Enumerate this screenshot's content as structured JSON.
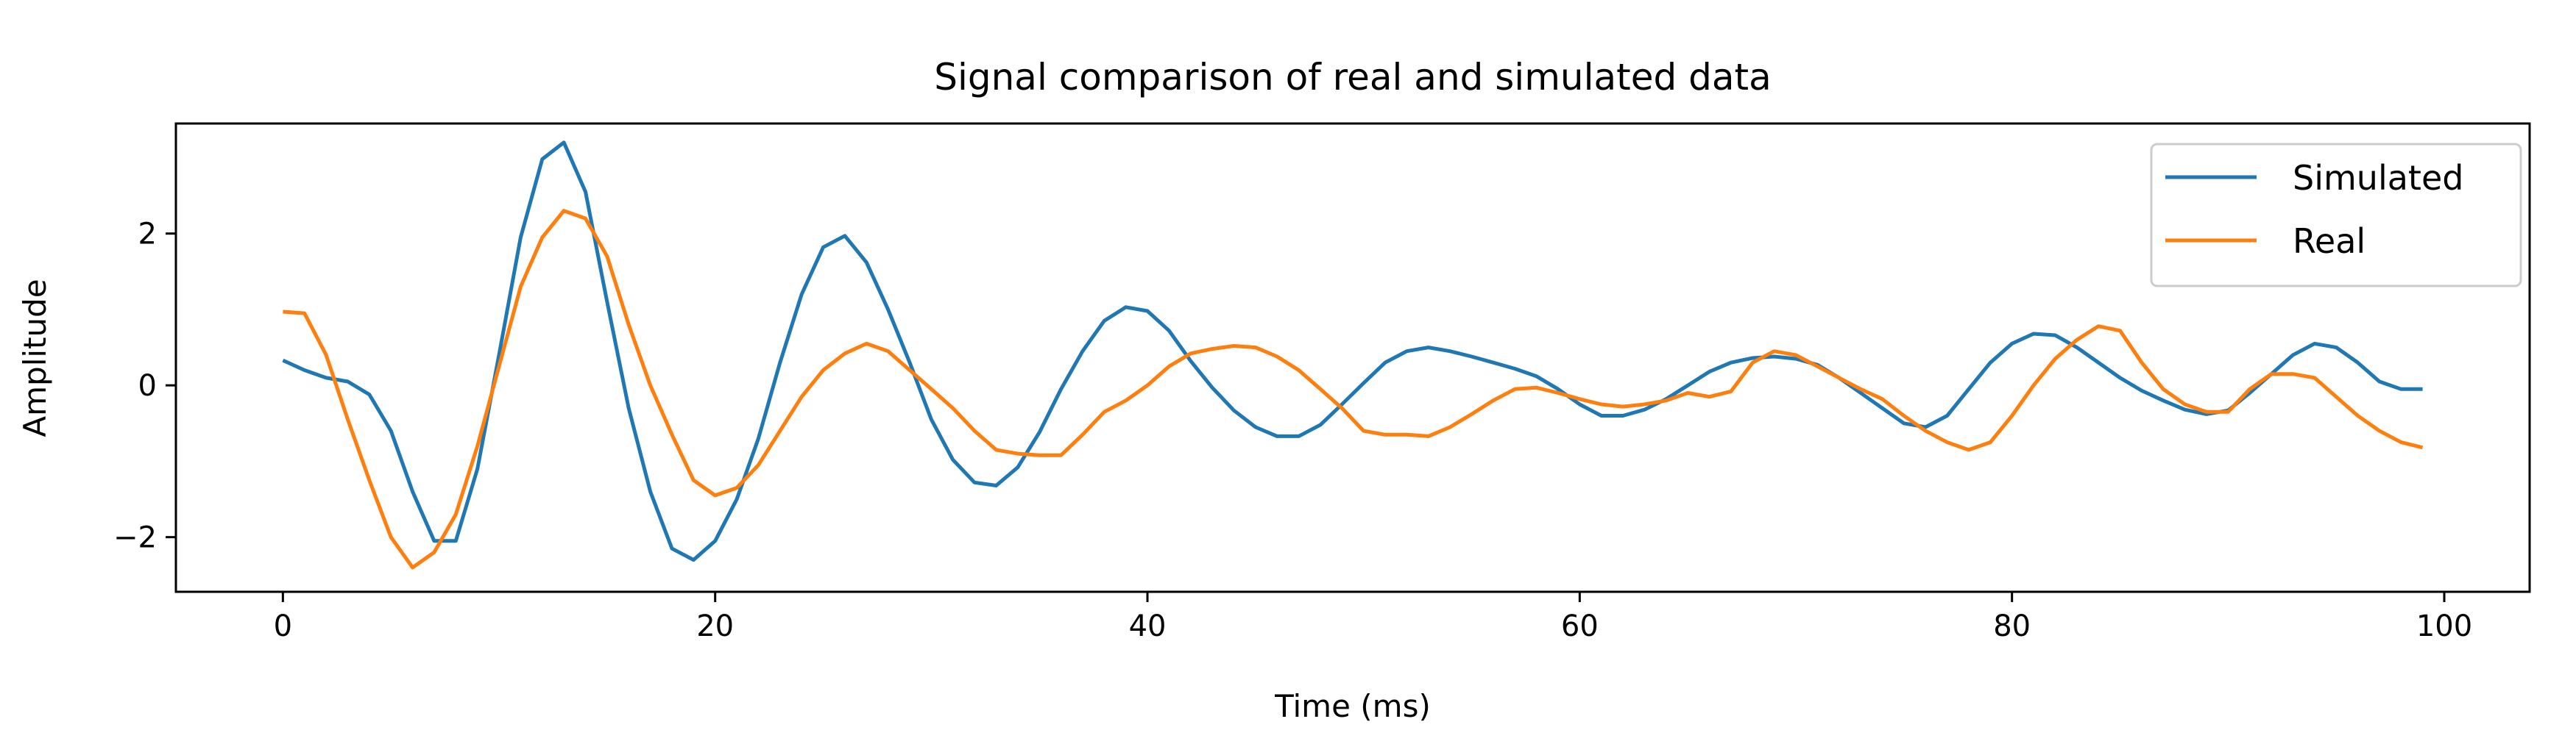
{
  "chart_data": {
    "type": "line",
    "title": "Signal comparison of real and simulated data",
    "xlabel": "Time (ms)",
    "ylabel": "Amplitude",
    "xlim": [
      -4.95,
      103.95
    ],
    "ylim": [
      -2.72,
      3.45
    ],
    "xticks": [
      0,
      20,
      40,
      60,
      80,
      100
    ],
    "xtick_labels": [
      "0",
      "20",
      "40",
      "60",
      "80",
      "100"
    ],
    "yticks": [
      -2,
      0,
      2
    ],
    "ytick_labels": [
      "−2",
      "0",
      "2"
    ],
    "grid": false,
    "legend_position": "top-right",
    "series": [
      {
        "name": "Simulated",
        "color": "#1f77b4",
        "values": [
          0.33,
          0.2,
          0.1,
          0.05,
          -0.12,
          -0.6,
          -1.4,
          -2.05,
          -2.05,
          -1.1,
          0.4,
          1.95,
          2.98,
          3.2,
          2.55,
          1.1,
          -0.3,
          -1.4,
          -2.15,
          -2.3,
          -2.05,
          -1.5,
          -0.7,
          0.3,
          1.2,
          1.82,
          1.97,
          1.62,
          1.0,
          0.3,
          -0.45,
          -0.98,
          -1.28,
          -1.32,
          -1.08,
          -0.62,
          -0.05,
          0.45,
          0.85,
          1.03,
          0.98,
          0.72,
          0.32,
          -0.03,
          -0.33,
          -0.55,
          -0.67,
          -0.67,
          -0.52,
          -0.25,
          0.03,
          0.3,
          0.45,
          0.5,
          0.45,
          0.38,
          0.3,
          0.22,
          0.12,
          -0.05,
          -0.25,
          -0.4,
          -0.4,
          -0.32,
          -0.18,
          0.0,
          0.18,
          0.3,
          0.36,
          0.38,
          0.35,
          0.27,
          0.1,
          -0.1,
          -0.3,
          -0.5,
          -0.55,
          -0.4,
          -0.05,
          0.3,
          0.55,
          0.68,
          0.66,
          0.5,
          0.3,
          0.1,
          -0.07,
          -0.2,
          -0.32,
          -0.38,
          -0.33,
          -0.1,
          0.15,
          0.4,
          0.55,
          0.5,
          0.3,
          0.05,
          -0.05,
          -0.05
        ]
      },
      {
        "name": "Real",
        "color": "#ff7f0e",
        "values": [
          0.97,
          0.95,
          0.4,
          -0.45,
          -1.25,
          -2.0,
          -2.4,
          -2.2,
          -1.7,
          -0.8,
          0.25,
          1.3,
          1.95,
          2.3,
          2.2,
          1.7,
          0.8,
          0.0,
          -0.65,
          -1.25,
          -1.45,
          -1.35,
          -1.05,
          -0.6,
          -0.15,
          0.2,
          0.42,
          0.55,
          0.45,
          0.2,
          -0.05,
          -0.3,
          -0.6,
          -0.85,
          -0.9,
          -0.92,
          -0.92,
          -0.65,
          -0.35,
          -0.2,
          0.0,
          0.25,
          0.42,
          0.48,
          0.52,
          0.5,
          0.38,
          0.2,
          -0.05,
          -0.3,
          -0.6,
          -0.65,
          -0.65,
          -0.67,
          -0.55,
          -0.38,
          -0.2,
          -0.05,
          -0.03,
          -0.1,
          -0.18,
          -0.25,
          -0.28,
          -0.25,
          -0.2,
          -0.1,
          -0.15,
          -0.08,
          0.3,
          0.45,
          0.4,
          0.25,
          0.1,
          -0.05,
          -0.18,
          -0.4,
          -0.6,
          -0.75,
          -0.85,
          -0.75,
          -0.4,
          0.0,
          0.35,
          0.6,
          0.78,
          0.72,
          0.3,
          -0.05,
          -0.25,
          -0.35,
          -0.35,
          -0.05,
          0.15,
          0.15,
          0.1,
          -0.15,
          -0.4,
          -0.6,
          -0.75,
          -0.82
        ]
      }
    ]
  }
}
